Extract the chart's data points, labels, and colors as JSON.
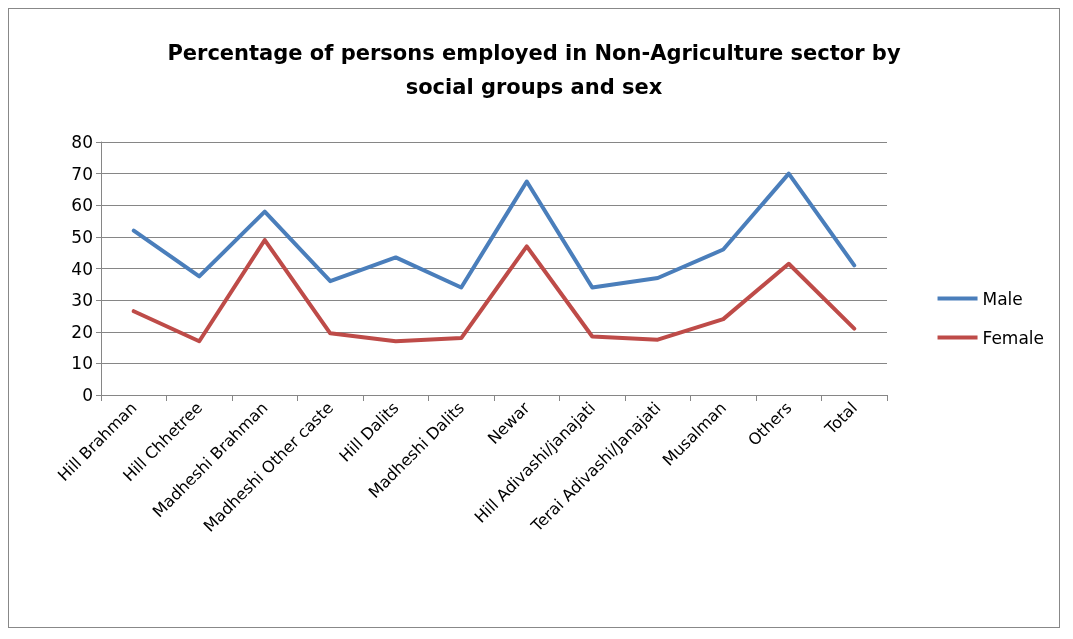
{
  "chart_data": {
    "type": "line",
    "title": "Percentage of persons employed in Non-Agriculture sector by\nsocial groups and sex",
    "categories": [
      "Hill Brahman",
      "Hill Chhetree",
      "Madheshi Brahman",
      "Madheshi Other caste",
      "Hill Dalits",
      "Madheshi Dalits",
      "Newar",
      "Hill Adivashi/janajati",
      "Terai Adivashi/Janajati",
      "Musalman",
      "Others",
      "Total"
    ],
    "series": [
      {
        "name": "Male",
        "color": "#4a7ebb",
        "values": [
          52,
          37.5,
          58,
          36,
          43.5,
          34,
          67.5,
          34,
          37,
          46,
          70,
          41
        ]
      },
      {
        "name": "Female",
        "color": "#be4b48",
        "values": [
          26.5,
          17,
          49,
          19.5,
          17,
          18,
          47,
          18.5,
          17.5,
          24,
          41.5,
          21
        ]
      }
    ],
    "ylim": [
      0,
      80
    ],
    "yticks": [
      0,
      10,
      20,
      30,
      40,
      50,
      60,
      70,
      80
    ],
    "grid": "y",
    "legend": "right",
    "marker": "none",
    "line_style": "solid"
  }
}
